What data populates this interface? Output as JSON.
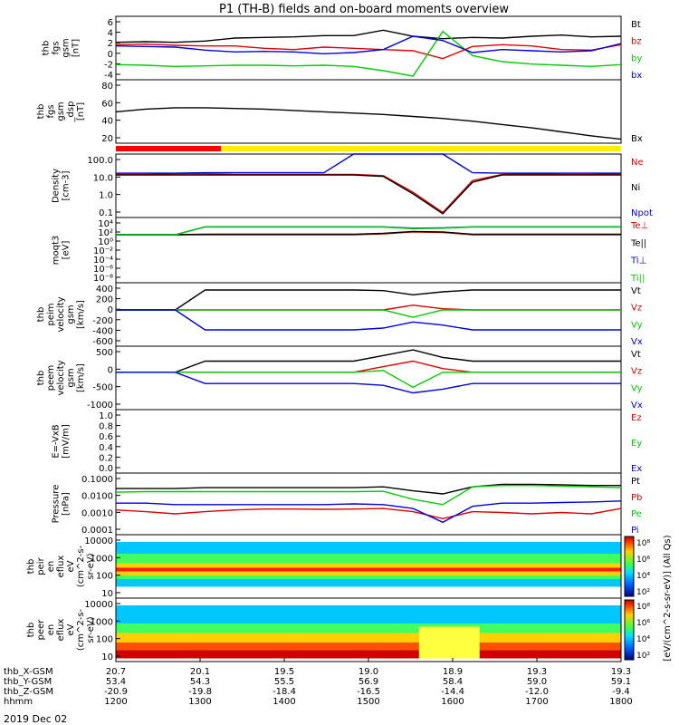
{
  "title": "P1 (TH-B) fields and on-board moments overview",
  "date_label": "2019 Dec 02",
  "colorbar": {
    "label": "[eV/(cm^2-s-sr-eV)] (All Qs)",
    "top_ticks": [
      "10⁸",
      "10⁶",
      "10⁴",
      "10²"
    ],
    "bottom_ticks": [
      "10⁸",
      "10⁶",
      "10⁴",
      "10²"
    ]
  },
  "chart_data": [
    {
      "type": "line",
      "ylabel": [
        "thb",
        "fgs",
        "gsm",
        "[nT]"
      ],
      "yticks": [
        "6",
        "4",
        "2",
        "0",
        "-2",
        "-4"
      ],
      "ylim": [
        -4,
        6.5
      ],
      "series": [
        {
          "name": "Bt",
          "color": "#000000",
          "values": [
            2.2,
            2.3,
            2.2,
            2.4,
            2.9,
            3.0,
            3.1,
            3.3,
            3.3,
            4.2,
            3.2,
            2.8,
            3.0,
            2.9,
            3.2,
            3.4,
            3.1,
            3.2
          ]
        },
        {
          "name": "bz",
          "color": "#e00000",
          "values": [
            1.8,
            1.9,
            1.7,
            1.6,
            1.6,
            1.2,
            1.0,
            1.4,
            1.2,
            1.0,
            0.8,
            -0.5,
            1.5,
            1.8,
            1.6,
            1.0,
            0.9,
            1.8
          ]
        },
        {
          "name": "by",
          "color": "#00cc00",
          "values": [
            -1.5,
            -1.6,
            -1.8,
            -1.7,
            -1.6,
            -1.6,
            -1.7,
            -1.6,
            -1.8,
            -2.5,
            -3.4,
            4.0,
            0.0,
            -1.0,
            -1.4,
            -1.6,
            -1.8,
            -1.5
          ]
        },
        {
          "name": "bx",
          "color": "#0000e0",
          "values": [
            1.6,
            1.5,
            1.4,
            0.9,
            0.6,
            0.7,
            0.6,
            0.3,
            0.5,
            1.0,
            3.2,
            2.5,
            0.5,
            1.0,
            0.8,
            0.6,
            0.8,
            2.0
          ]
        }
      ]
    },
    {
      "type": "line",
      "ylabel": [
        "thb",
        "fgs",
        "gsm",
        "_dsp",
        "[nT]"
      ],
      "yticks": [
        "80",
        "60",
        "40",
        "20"
      ],
      "ylim": [
        5,
        100
      ],
      "series": [
        {
          "name": "Bx",
          "color": "#000000",
          "values": [
            52,
            56,
            58,
            58,
            57,
            56,
            54,
            52,
            50,
            48,
            45,
            42,
            38,
            33,
            28,
            22,
            16,
            11
          ]
        }
      ]
    },
    {
      "type": "area",
      "bar_colors": [
        "#ff0000",
        "#ffee00"
      ],
      "bar_switch_time": "13:15"
    },
    {
      "type": "line",
      "log": true,
      "ylabel": [
        "Density",
        "[cm-3]"
      ],
      "yticks": [
        "100.0",
        "10.0",
        "1.0",
        "0.1"
      ],
      "ylim": [
        0.03,
        200
      ],
      "series": [
        {
          "name": "Ne",
          "color": "#e00000",
          "values": [
            12,
            12,
            13,
            13,
            12,
            12,
            12,
            12,
            12,
            10,
            1.0,
            0.06,
            5,
            12,
            13,
            12,
            12,
            13
          ]
        },
        {
          "name": "Ni",
          "color": "#000000",
          "values": [
            11,
            11,
            11,
            11,
            11,
            11,
            11,
            11,
            11,
            9,
            0.8,
            0.05,
            4,
            11,
            11,
            11,
            11,
            11
          ]
        },
        {
          "name": "Npot",
          "color": "#0000e0",
          "values": [
            14,
            14,
            14,
            15,
            15,
            15,
            15,
            15,
            250,
            250,
            250,
            250,
            15,
            14,
            14,
            14,
            14,
            14
          ]
        }
      ]
    },
    {
      "type": "line",
      "log": true,
      "ylabel": [
        "moqt3",
        "[eV]"
      ],
      "yticks": [
        "10⁴",
        "10²",
        "10⁰",
        "10⁻²",
        "10⁻⁴",
        "10⁻⁶",
        "10⁻⁸"
      ],
      "ylim": [
        1e-09,
        100000.0
      ],
      "series": [
        {
          "name": "Te⊥",
          "color": "#e00000",
          "values": [
            20,
            20,
            20,
            20,
            20,
            20,
            20,
            20,
            20,
            30,
            80,
            60,
            20,
            20,
            20,
            20,
            20,
            20
          ]
        },
        {
          "name": "Te||",
          "color": "#000000",
          "values": [
            20,
            20,
            20,
            25,
            25,
            25,
            25,
            25,
            25,
            40,
            100,
            80,
            25,
            25,
            25,
            25,
            25,
            25
          ]
        },
        {
          "name": "Ti⊥",
          "color": "#0000e0",
          "values": [
            20,
            20,
            20,
            1000,
            1000,
            1000,
            1000,
            1000,
            1000,
            1000,
            500,
            600,
            1000,
            1000,
            1000,
            1000,
            1000,
            1000
          ]
        },
        {
          "name": "Ti||",
          "color": "#00cc00",
          "values": [
            20,
            20,
            20,
            900,
            900,
            900,
            900,
            900,
            900,
            900,
            400,
            500,
            900,
            900,
            900,
            900,
            900,
            900
          ]
        }
      ]
    },
    {
      "type": "line",
      "ylabel": [
        "thb",
        "peim",
        "velocity",
        "gsm",
        "[km/s]"
      ],
      "yticks": [
        "400",
        "200",
        "0",
        "-200",
        "-400",
        "-600"
      ],
      "ylim": [
        -600,
        450
      ],
      "series": [
        {
          "name": "Vt",
          "color": "#000000",
          "values": [
            0,
            0,
            0,
            330,
            330,
            330,
            330,
            330,
            330,
            320,
            250,
            300,
            330,
            330,
            330,
            330,
            330,
            330
          ]
        },
        {
          "name": "Vz",
          "color": "#e00000",
          "values": [
            0,
            0,
            0,
            0,
            0,
            0,
            0,
            0,
            0,
            0,
            80,
            20,
            0,
            0,
            0,
            0,
            0,
            0
          ]
        },
        {
          "name": "Vy",
          "color": "#00cc00",
          "values": [
            0,
            0,
            0,
            0,
            0,
            0,
            0,
            0,
            0,
            0,
            -120,
            0,
            0,
            0,
            0,
            0,
            0,
            0
          ]
        },
        {
          "name": "Vx",
          "color": "#0000e0",
          "values": [
            0,
            0,
            0,
            -330,
            -330,
            -330,
            -330,
            -330,
            -330,
            -300,
            -200,
            -250,
            -330,
            -330,
            -330,
            -330,
            -330,
            -330
          ]
        }
      ]
    },
    {
      "type": "line",
      "ylabel": [
        "thb",
        "peem",
        "velocity",
        "gsm",
        "[km/s]"
      ],
      "yticks": [
        "500",
        "0",
        "-500",
        "-1000"
      ],
      "ylim": [
        -1000,
        700
      ],
      "series": [
        {
          "name": "Vt",
          "color": "#000000",
          "values": [
            0,
            0,
            0,
            300,
            300,
            300,
            300,
            300,
            300,
            450,
            600,
            400,
            300,
            300,
            300,
            300,
            300,
            300
          ]
        },
        {
          "name": "Vz",
          "color": "#e00000",
          "values": [
            0,
            0,
            0,
            0,
            0,
            0,
            0,
            0,
            0,
            150,
            300,
            100,
            0,
            0,
            0,
            0,
            0,
            0
          ]
        },
        {
          "name": "Vy",
          "color": "#00cc00",
          "values": [
            0,
            0,
            0,
            0,
            0,
            0,
            0,
            0,
            0,
            50,
            -400,
            0,
            0,
            0,
            0,
            0,
            0,
            0
          ]
        },
        {
          "name": "Vx",
          "color": "#0000e0",
          "values": [
            0,
            0,
            0,
            -300,
            -300,
            -300,
            -300,
            -300,
            -300,
            -350,
            -550,
            -450,
            -300,
            -300,
            -300,
            -300,
            -300,
            -300
          ]
        }
      ]
    },
    {
      "type": "line",
      "ylabel": [
        "E=-VxB",
        "[mV/m]"
      ],
      "yticks": [
        "1.0",
        "0.8",
        "0.6",
        "0.4",
        "0.2",
        "0.0"
      ],
      "ylim": [
        0,
        1
      ],
      "series": [
        {
          "name": "Ez",
          "color": "#e00000",
          "values": []
        },
        {
          "name": "Ey",
          "color": "#00cc00",
          "values": []
        },
        {
          "name": "Ex",
          "color": "#0000e0",
          "values": []
        }
      ]
    },
    {
      "type": "line",
      "log": true,
      "ylabel": [
        "Pressure",
        "[nPa]"
      ],
      "yticks": [
        "0.1000",
        "0.0100",
        "0.0010",
        "0.0001"
      ],
      "ylim": [
        0.0001,
        0.3
      ],
      "series": [
        {
          "name": "Pt",
          "color": "#000000",
          "values": [
            0.04,
            0.04,
            0.04,
            0.045,
            0.045,
            0.045,
            0.045,
            0.045,
            0.045,
            0.05,
            0.03,
            0.02,
            0.05,
            0.07,
            0.07,
            0.065,
            0.06,
            0.06
          ]
        },
        {
          "name": "Pb",
          "color": "#e00000",
          "values": [
            0.0025,
            0.002,
            0.0015,
            0.002,
            0.0025,
            0.0028,
            0.0028,
            0.0027,
            0.0028,
            0.003,
            0.002,
            0.0008,
            0.002,
            0.0018,
            0.0015,
            0.0018,
            0.0015,
            0.003
          ]
        },
        {
          "name": "Pe",
          "color": "#00cc00",
          "values": [
            0.025,
            0.027,
            0.027,
            0.027,
            0.027,
            0.027,
            0.027,
            0.027,
            0.027,
            0.028,
            0.01,
            0.005,
            0.05,
            0.06,
            0.06,
            0.055,
            0.05,
            0.045
          ]
        },
        {
          "name": "Pi",
          "color": "#0000e0",
          "values": [
            0.006,
            0.006,
            0.005,
            0.005,
            0.005,
            0.005,
            0.005,
            0.005,
            0.0055,
            0.005,
            0.003,
            0.0005,
            0.004,
            0.006,
            0.006,
            0.0065,
            0.007,
            0.008
          ]
        }
      ]
    },
    {
      "type": "heatmap",
      "ylabel": [
        "thb",
        "peir",
        "en",
        "eflux",
        "eV",
        "(cm^2-s-",
        "sr-eV)"
      ],
      "yticks": [
        "10000",
        "1000",
        "100",
        "10"
      ],
      "ylim": [
        5,
        20000
      ]
    },
    {
      "type": "heatmap",
      "ylabel": [
        "thb",
        "peer",
        "en",
        "eflux",
        "eV",
        "(cm^2-s-",
        "sr-eV)"
      ],
      "yticks": [
        "10000",
        "1000",
        "100",
        "10"
      ],
      "ylim": [
        5,
        20000
      ]
    }
  ],
  "x_axis": {
    "row_labels": [
      "thb_X-GSM",
      "thb_Y-GSM",
      "thb_Z-GSM",
      "hhmm"
    ],
    "columns": [
      [
        "20.7",
        "53.4",
        "-20.9",
        "1200"
      ],
      [
        "20.1",
        "54.3",
        "-19.8",
        "1300"
      ],
      [
        "19.5",
        "55.5",
        "-18.4",
        "1400"
      ],
      [
        "19.0",
        "56.9",
        "-16.5",
        "1500"
      ],
      [
        "18.9",
        "58.4",
        "-14.4",
        "1600"
      ],
      [
        "19.3",
        "59.0",
        "-12.0",
        "1700"
      ],
      [
        "19.3",
        "59.1",
        "-9.4",
        "1800"
      ]
    ]
  }
}
